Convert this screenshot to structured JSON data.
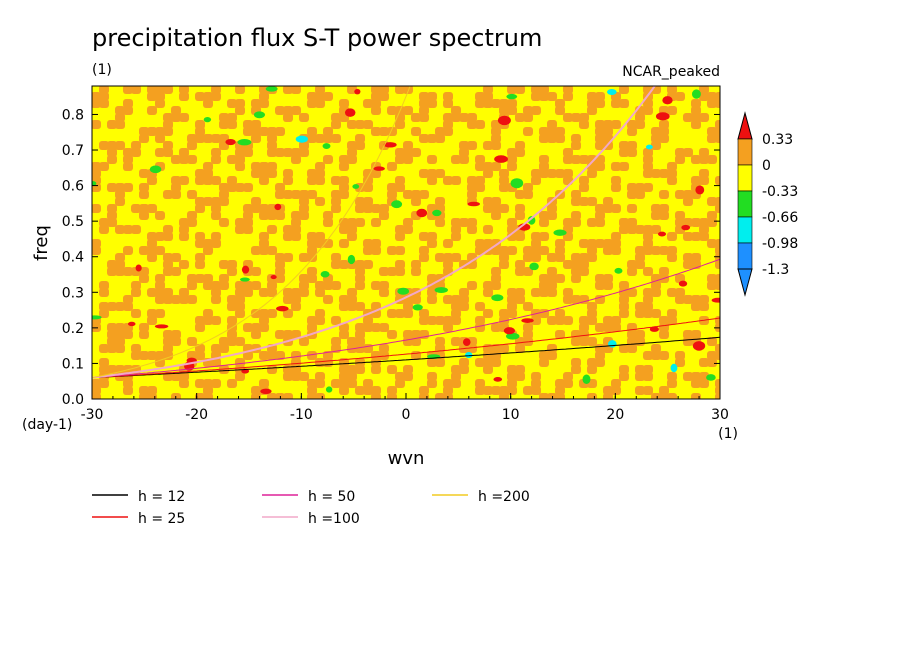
{
  "chart_data": {
    "type": "heatmap",
    "title": "precipitation flux S-T power spectrum",
    "units_label": "(1)",
    "model_label": "NCAR_peaked",
    "xlabel": "wvn",
    "ylabel": "freq",
    "y_units": "(day-1)",
    "x_units": "(1)",
    "xlim": [
      -30,
      30
    ],
    "ylim": [
      0,
      0.88
    ],
    "x_ticks": [
      "-30",
      "-20",
      "-10",
      "0",
      "10",
      "20",
      "30"
    ],
    "y_ticks": [
      "0.0",
      "0.1",
      "0.2",
      "0.3",
      "0.4",
      "0.5",
      "0.6",
      "0.7",
      "0.8"
    ],
    "colorbar": {
      "levels": [
        "0.33",
        "0",
        "-0.33",
        "-0.66",
        "-0.98",
        "-1.3"
      ],
      "colors": [
        "#ee1010",
        "#f4a020",
        "#ffff00",
        "#22dd22",
        "#00eeee",
        "#1e90ff"
      ]
    },
    "series": [
      {
        "name": "h = 12",
        "color": "#000000",
        "equivalent_depth": 12
      },
      {
        "name": "h = 25",
        "color": "#ee1111",
        "equivalent_depth": 25
      },
      {
        "name": "h = 50",
        "color": "#dd2299",
        "equivalent_depth": 50
      },
      {
        "name": "h =100",
        "color": "#f2a8c8",
        "equivalent_depth": 100
      },
      {
        "name": "h =200",
        "color": "#f2cc22",
        "equivalent_depth": 200
      }
    ],
    "legend_position": "bottom",
    "grid": false
  }
}
